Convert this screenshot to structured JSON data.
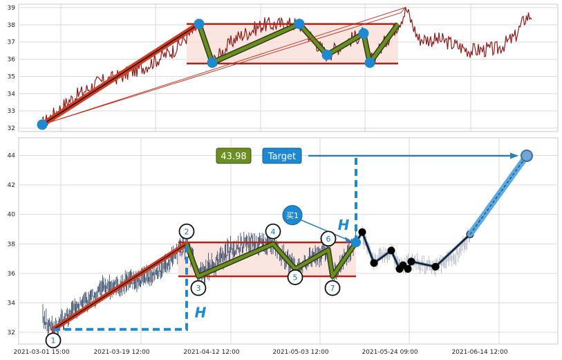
{
  "chart_data": [
    {
      "type": "line",
      "panel": "overview",
      "ylim": [
        31.8,
        39.2
      ],
      "y_ticks": [
        "32",
        "33",
        "34",
        "35",
        "36",
        "37",
        "38",
        "39"
      ],
      "grid": true,
      "colors": {
        "price": "#8b1a1a",
        "channel": "#b02418",
        "trend": "#d23b1f",
        "zigzag": "#6b8e23",
        "point": "#1e88d0",
        "band": "#f8dcd6"
      },
      "channel": {
        "upper": 38.05,
        "lower": 35.75
      },
      "pivots": [
        32.2,
        38.05,
        35.8,
        38.05,
        36.25,
        37.5,
        35.8,
        38.05
      ]
    },
    {
      "type": "line",
      "panel": "pattern",
      "ylim": [
        31.2,
        45.2
      ],
      "y_ticks": [
        "32",
        "34",
        "36",
        "38",
        "40",
        "42",
        "44"
      ],
      "x_ticks": [
        "2021-03-01 15:00",
        "2021-03-19 12:00",
        "2021-04-12 12:00",
        "2021-05-03 12:00",
        "2021-05-24 09:00",
        "2021-06-14 12:00"
      ],
      "grid": true,
      "colors": {
        "price": "#243a5a",
        "channel": "#b02418",
        "trend": "#d23b1f",
        "zigzag": "#6b8e23",
        "target": "#1e88d0",
        "band": "#f8dcd6",
        "forecast": "#000000"
      },
      "channel": {
        "upper": 38.1,
        "lower": 35.8
      },
      "pivots": [
        {
          "label": "1",
          "y": 32.2
        },
        {
          "label": "2",
          "y": 38.0
        },
        {
          "label": "3",
          "y": 35.8
        },
        {
          "label": "4",
          "y": 38.0
        },
        {
          "label": "5",
          "y": 36.3
        },
        {
          "label": "6",
          "y": 37.6
        },
        {
          "label": "7",
          "y": 35.8
        }
      ],
      "breakout": 38.1,
      "forecast": [
        38.8,
        36.7,
        37.55,
        36.3,
        36.55,
        36.3,
        36.8,
        36.45,
        38.65
      ],
      "target_value": 43.98,
      "target_label": "Target",
      "target_value_label": "43.98",
      "buy_label": "买1",
      "height_label": "H"
    }
  ]
}
